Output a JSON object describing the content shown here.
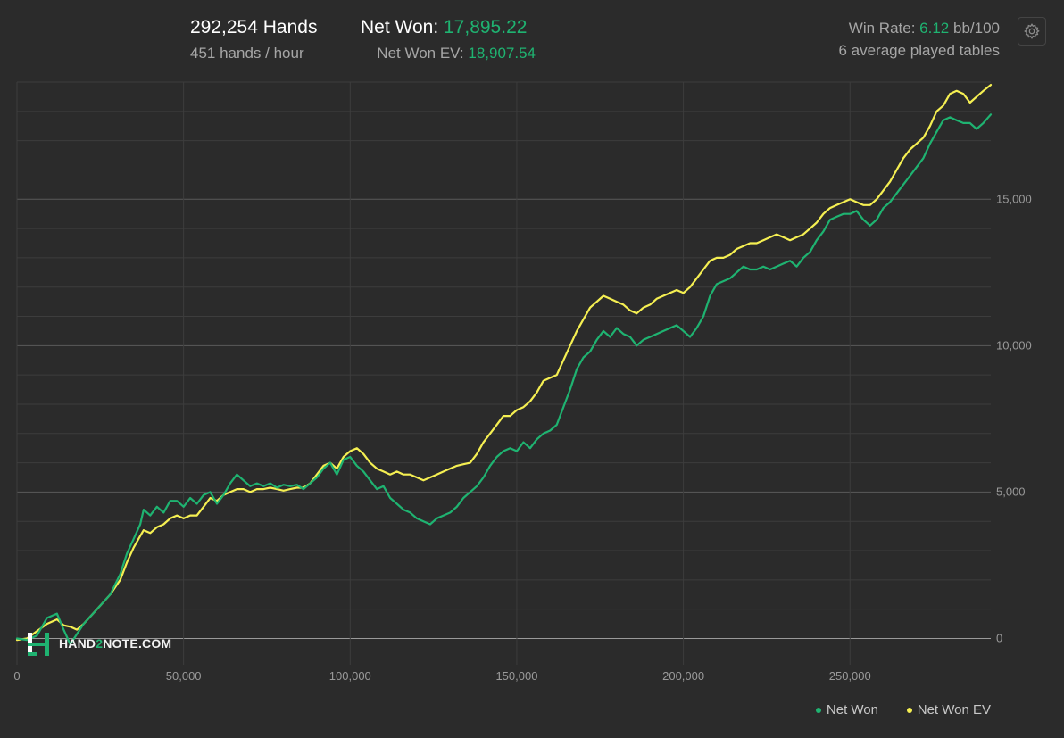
{
  "header": {
    "hands_value": "292,254",
    "hands_label": "Hands",
    "hands_per_hour": "451 hands / hour",
    "net_won_label": "Net Won:",
    "net_won_value": "17,895.22",
    "net_won_ev_label": "Net Won  EV:",
    "net_won_ev_value": "18,907.54",
    "win_rate_label": "Win Rate:",
    "win_rate_value": "6.12",
    "win_rate_unit": "bb/100",
    "tables_text": "6 average played tables"
  },
  "settings_icon": "gear-icon",
  "logo": {
    "text_a": "HAND",
    "text_b": "2",
    "text_c": "NOTE.COM"
  },
  "colors": {
    "background": "#2b2b2b",
    "net_won": "#1fb371",
    "net_won_ev": "#f5ef52",
    "grid": "#3d3d3d",
    "zero_line": "#9a9a9a"
  },
  "chart_data": {
    "type": "line",
    "xlim": [
      0,
      292254
    ],
    "ylim": [
      -900,
      19000
    ],
    "x_ticks": [
      0,
      50000,
      100000,
      150000,
      200000,
      250000
    ],
    "x_tick_labels": [
      "0",
      "50,000",
      "100,000",
      "150,000",
      "200,000",
      "250,000"
    ],
    "y_ticks": [
      0,
      5000,
      10000,
      15000
    ],
    "y_tick_labels": [
      "0",
      "5,000",
      "10,000",
      "15,000"
    ],
    "grid": true,
    "legend_position": "bottom-right",
    "series": [
      {
        "name": "Net Won",
        "color": "#1fb371",
        "points": [
          [
            0,
            0
          ],
          [
            3000,
            -50
          ],
          [
            6000,
            100
          ],
          [
            9000,
            700
          ],
          [
            12000,
            850
          ],
          [
            14000,
            300
          ],
          [
            16000,
            -200
          ],
          [
            18000,
            150
          ],
          [
            20000,
            500
          ],
          [
            24000,
            1000
          ],
          [
            28000,
            1500
          ],
          [
            31000,
            2200
          ],
          [
            33000,
            2900
          ],
          [
            35000,
            3400
          ],
          [
            37000,
            3900
          ],
          [
            38000,
            4400
          ],
          [
            40000,
            4200
          ],
          [
            42000,
            4500
          ],
          [
            44000,
            4300
          ],
          [
            46000,
            4700
          ],
          [
            48000,
            4700
          ],
          [
            50000,
            4500
          ],
          [
            52000,
            4800
          ],
          [
            54000,
            4600
          ],
          [
            56000,
            4900
          ],
          [
            58000,
            5000
          ],
          [
            60000,
            4600
          ],
          [
            62000,
            4900
          ],
          [
            64000,
            5300
          ],
          [
            66000,
            5600
          ],
          [
            68000,
            5400
          ],
          [
            70000,
            5200
          ],
          [
            72000,
            5300
          ],
          [
            74000,
            5200
          ],
          [
            76000,
            5300
          ],
          [
            78000,
            5150
          ],
          [
            80000,
            5250
          ],
          [
            82000,
            5200
          ],
          [
            84000,
            5250
          ],
          [
            86000,
            5100
          ],
          [
            88000,
            5300
          ],
          [
            90000,
            5500
          ],
          [
            92000,
            5800
          ],
          [
            94000,
            6000
          ],
          [
            96000,
            5600
          ],
          [
            98000,
            6100
          ],
          [
            100000,
            6200
          ],
          [
            102000,
            5900
          ],
          [
            104000,
            5700
          ],
          [
            106000,
            5400
          ],
          [
            108000,
            5100
          ],
          [
            110000,
            5200
          ],
          [
            112000,
            4800
          ],
          [
            114000,
            4600
          ],
          [
            116000,
            4400
          ],
          [
            118000,
            4300
          ],
          [
            120000,
            4100
          ],
          [
            122000,
            4000
          ],
          [
            124000,
            3900
          ],
          [
            126000,
            4100
          ],
          [
            128000,
            4200
          ],
          [
            130000,
            4300
          ],
          [
            132000,
            4500
          ],
          [
            134000,
            4800
          ],
          [
            136000,
            5000
          ],
          [
            138000,
            5200
          ],
          [
            140000,
            5500
          ],
          [
            142000,
            5900
          ],
          [
            144000,
            6200
          ],
          [
            146000,
            6400
          ],
          [
            148000,
            6500
          ],
          [
            150000,
            6400
          ],
          [
            152000,
            6700
          ],
          [
            154000,
            6500
          ],
          [
            156000,
            6800
          ],
          [
            158000,
            7000
          ],
          [
            160000,
            7100
          ],
          [
            162000,
            7300
          ],
          [
            164000,
            7900
          ],
          [
            166000,
            8500
          ],
          [
            168000,
            9200
          ],
          [
            170000,
            9600
          ],
          [
            172000,
            9800
          ],
          [
            174000,
            10200
          ],
          [
            176000,
            10500
          ],
          [
            178000,
            10300
          ],
          [
            180000,
            10600
          ],
          [
            182000,
            10400
          ],
          [
            184000,
            10300
          ],
          [
            186000,
            10000
          ],
          [
            188000,
            10200
          ],
          [
            190000,
            10300
          ],
          [
            192000,
            10400
          ],
          [
            194000,
            10500
          ],
          [
            196000,
            10600
          ],
          [
            198000,
            10700
          ],
          [
            200000,
            10500
          ],
          [
            202000,
            10300
          ],
          [
            204000,
            10600
          ],
          [
            206000,
            11000
          ],
          [
            208000,
            11700
          ],
          [
            210000,
            12100
          ],
          [
            212000,
            12200
          ],
          [
            214000,
            12300
          ],
          [
            216000,
            12500
          ],
          [
            218000,
            12700
          ],
          [
            220000,
            12600
          ],
          [
            222000,
            12600
          ],
          [
            224000,
            12700
          ],
          [
            226000,
            12600
          ],
          [
            228000,
            12700
          ],
          [
            230000,
            12800
          ],
          [
            232000,
            12900
          ],
          [
            234000,
            12700
          ],
          [
            236000,
            13000
          ],
          [
            238000,
            13200
          ],
          [
            240000,
            13600
          ],
          [
            242000,
            13900
          ],
          [
            244000,
            14300
          ],
          [
            246000,
            14400
          ],
          [
            248000,
            14500
          ],
          [
            250000,
            14500
          ],
          [
            252000,
            14600
          ],
          [
            254000,
            14300
          ],
          [
            256000,
            14100
          ],
          [
            258000,
            14300
          ],
          [
            260000,
            14700
          ],
          [
            262000,
            14900
          ],
          [
            264000,
            15200
          ],
          [
            266000,
            15500
          ],
          [
            268000,
            15800
          ],
          [
            270000,
            16100
          ],
          [
            272000,
            16400
          ],
          [
            274000,
            16900
          ],
          [
            276000,
            17300
          ],
          [
            278000,
            17700
          ],
          [
            280000,
            17800
          ],
          [
            282000,
            17700
          ],
          [
            284000,
            17600
          ],
          [
            286000,
            17600
          ],
          [
            288000,
            17400
          ],
          [
            290000,
            17600
          ],
          [
            292254,
            17895
          ]
        ]
      },
      {
        "name": "Net Won  EV",
        "color": "#f5ef52",
        "points": [
          [
            0,
            -50
          ],
          [
            3000,
            0
          ],
          [
            6000,
            250
          ],
          [
            9000,
            500
          ],
          [
            12000,
            650
          ],
          [
            14000,
            450
          ],
          [
            16000,
            400
          ],
          [
            18000,
            300
          ],
          [
            20000,
            500
          ],
          [
            24000,
            1000
          ],
          [
            28000,
            1500
          ],
          [
            31000,
            2000
          ],
          [
            33000,
            2600
          ],
          [
            35000,
            3100
          ],
          [
            37000,
            3500
          ],
          [
            38000,
            3700
          ],
          [
            40000,
            3600
          ],
          [
            42000,
            3800
          ],
          [
            44000,
            3900
          ],
          [
            46000,
            4100
          ],
          [
            48000,
            4200
          ],
          [
            50000,
            4100
          ],
          [
            52000,
            4200
          ],
          [
            54000,
            4200
          ],
          [
            56000,
            4500
          ],
          [
            58000,
            4800
          ],
          [
            60000,
            4700
          ],
          [
            62000,
            4900
          ],
          [
            64000,
            5000
          ],
          [
            66000,
            5100
          ],
          [
            68000,
            5100
          ],
          [
            70000,
            5000
          ],
          [
            72000,
            5100
          ],
          [
            74000,
            5100
          ],
          [
            76000,
            5150
          ],
          [
            78000,
            5100
          ],
          [
            80000,
            5050
          ],
          [
            82000,
            5100
          ],
          [
            84000,
            5150
          ],
          [
            86000,
            5150
          ],
          [
            88000,
            5300
          ],
          [
            90000,
            5600
          ],
          [
            92000,
            5900
          ],
          [
            94000,
            6000
          ],
          [
            96000,
            5800
          ],
          [
            98000,
            6200
          ],
          [
            100000,
            6400
          ],
          [
            102000,
            6500
          ],
          [
            104000,
            6300
          ],
          [
            106000,
            6000
          ],
          [
            108000,
            5800
          ],
          [
            110000,
            5700
          ],
          [
            112000,
            5600
          ],
          [
            114000,
            5700
          ],
          [
            116000,
            5600
          ],
          [
            118000,
            5600
          ],
          [
            120000,
            5500
          ],
          [
            122000,
            5400
          ],
          [
            124000,
            5500
          ],
          [
            126000,
            5600
          ],
          [
            128000,
            5700
          ],
          [
            130000,
            5800
          ],
          [
            132000,
            5900
          ],
          [
            134000,
            5950
          ],
          [
            136000,
            6000
          ],
          [
            138000,
            6300
          ],
          [
            140000,
            6700
          ],
          [
            142000,
            7000
          ],
          [
            144000,
            7300
          ],
          [
            146000,
            7600
          ],
          [
            148000,
            7600
          ],
          [
            150000,
            7800
          ],
          [
            152000,
            7900
          ],
          [
            154000,
            8100
          ],
          [
            156000,
            8400
          ],
          [
            158000,
            8800
          ],
          [
            160000,
            8900
          ],
          [
            162000,
            9000
          ],
          [
            164000,
            9500
          ],
          [
            166000,
            10000
          ],
          [
            168000,
            10500
          ],
          [
            170000,
            10900
          ],
          [
            172000,
            11300
          ],
          [
            174000,
            11500
          ],
          [
            176000,
            11700
          ],
          [
            178000,
            11600
          ],
          [
            180000,
            11500
          ],
          [
            182000,
            11400
          ],
          [
            184000,
            11200
          ],
          [
            186000,
            11100
          ],
          [
            188000,
            11300
          ],
          [
            190000,
            11400
          ],
          [
            192000,
            11600
          ],
          [
            194000,
            11700
          ],
          [
            196000,
            11800
          ],
          [
            198000,
            11900
          ],
          [
            200000,
            11800
          ],
          [
            202000,
            12000
          ],
          [
            204000,
            12300
          ],
          [
            206000,
            12600
          ],
          [
            208000,
            12900
          ],
          [
            210000,
            13000
          ],
          [
            212000,
            13000
          ],
          [
            214000,
            13100
          ],
          [
            216000,
            13300
          ],
          [
            218000,
            13400
          ],
          [
            220000,
            13500
          ],
          [
            222000,
            13500
          ],
          [
            224000,
            13600
          ],
          [
            226000,
            13700
          ],
          [
            228000,
            13800
          ],
          [
            230000,
            13700
          ],
          [
            232000,
            13600
          ],
          [
            234000,
            13700
          ],
          [
            236000,
            13800
          ],
          [
            238000,
            14000
          ],
          [
            240000,
            14200
          ],
          [
            242000,
            14500
          ],
          [
            244000,
            14700
          ],
          [
            246000,
            14800
          ],
          [
            248000,
            14900
          ],
          [
            250000,
            15000
          ],
          [
            252000,
            14900
          ],
          [
            254000,
            14800
          ],
          [
            256000,
            14800
          ],
          [
            258000,
            15000
          ],
          [
            260000,
            15300
          ],
          [
            262000,
            15600
          ],
          [
            264000,
            16000
          ],
          [
            266000,
            16400
          ],
          [
            268000,
            16700
          ],
          [
            270000,
            16900
          ],
          [
            272000,
            17100
          ],
          [
            274000,
            17500
          ],
          [
            276000,
            18000
          ],
          [
            278000,
            18200
          ],
          [
            280000,
            18600
          ],
          [
            282000,
            18700
          ],
          [
            284000,
            18600
          ],
          [
            286000,
            18300
          ],
          [
            288000,
            18500
          ],
          [
            290000,
            18700
          ],
          [
            292254,
            18907
          ]
        ]
      }
    ]
  }
}
